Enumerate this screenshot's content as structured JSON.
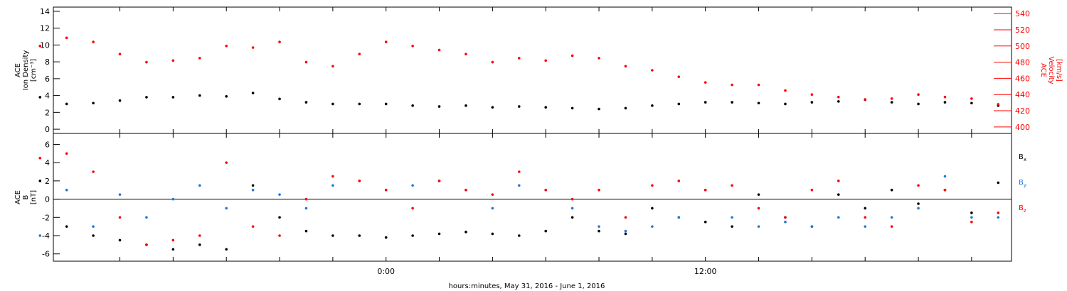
{
  "chart_data": [
    {
      "type": "scatter",
      "panel": "top",
      "left_axis": {
        "label_lines": [
          "ACE",
          "Ion Density",
          "[cm⁻³]"
        ],
        "ylim": [
          -0.5,
          14.5
        ],
        "ticks": [
          "0",
          "2",
          "4",
          "6",
          "8",
          "10",
          "12",
          "14"
        ],
        "color": "#000000"
      },
      "right_axis": {
        "label_lines": [
          "ACE",
          "Velocity",
          "[km/s]"
        ],
        "ylim": [
          392,
          548
        ],
        "ticks": [
          "400",
          "420",
          "440",
          "460",
          "480",
          "500",
          "520",
          "540"
        ],
        "color": "#ff0000"
      },
      "series": [
        {
          "role": "ion_density",
          "axis": "left",
          "color": "#000000",
          "x": [
            -13,
            -12,
            -11,
            -10,
            -9,
            -8,
            -7,
            -6,
            -5,
            -4,
            -3,
            -2,
            -1,
            0,
            1,
            2,
            3,
            4,
            5,
            6,
            7,
            8,
            9,
            10,
            11,
            12,
            13,
            14,
            15,
            16,
            17,
            18,
            19,
            20,
            21,
            22,
            23
          ],
          "y": [
            3.8,
            3.0,
            3.1,
            3.4,
            3.8,
            3.8,
            4.0,
            3.9,
            4.3,
            3.6,
            3.2,
            3.0,
            3.0,
            3.0,
            2.8,
            2.7,
            2.8,
            2.6,
            2.7,
            2.6,
            2.5,
            2.4,
            2.5,
            2.8,
            3.0,
            3.2,
            3.2,
            3.1,
            3.0,
            3.2,
            3.3,
            3.5,
            3.2,
            3.0,
            3.2,
            3.1,
            2.8
          ]
        },
        {
          "role": "velocity",
          "axis": "right",
          "color": "#ff0000",
          "x": [
            -13,
            -12,
            -11,
            -10,
            -9,
            -8,
            -7,
            -6,
            -5,
            -4,
            -3,
            -2,
            -1,
            0,
            1,
            2,
            3,
            4,
            5,
            6,
            7,
            8,
            9,
            10,
            11,
            12,
            13,
            14,
            15,
            16,
            17,
            18,
            19,
            20,
            21,
            22,
            23
          ],
          "y": [
            500,
            510,
            505,
            490,
            480,
            482,
            485,
            500,
            498,
            505,
            480,
            475,
            490,
            505,
            500,
            495,
            490,
            480,
            485,
            482,
            488,
            485,
            475,
            470,
            462,
            455,
            452,
            452,
            445,
            440,
            437,
            434,
            435,
            440,
            437,
            435,
            428
          ]
        }
      ]
    },
    {
      "type": "scatter",
      "panel": "bottom",
      "left_axis": {
        "label_lines": [
          "ACE",
          "B",
          "[nT]"
        ],
        "ylim": [
          -6.8,
          7.2
        ],
        "ticks": [
          "-6",
          "-4",
          "-2",
          "0",
          "2",
          "4",
          "6"
        ],
        "color": "#000000"
      },
      "zero_line": true,
      "legend": {
        "placement": "right"
      },
      "series": [
        {
          "name": "B",
          "subscript": "x",
          "color": "#000000",
          "x": [
            -13,
            -12,
            -11,
            -10,
            -9,
            -8,
            -7,
            -6,
            -5,
            -4,
            -3,
            -2,
            -1,
            0,
            1,
            2,
            3,
            4,
            5,
            6,
            7,
            8,
            9,
            10,
            11,
            12,
            13,
            14,
            15,
            16,
            17,
            18,
            19,
            20,
            21,
            22,
            23
          ],
          "y": [
            2.0,
            -3.0,
            -4.0,
            -4.5,
            -5.0,
            -5.5,
            -5.0,
            -5.5,
            1.5,
            -2.0,
            -3.5,
            -4.0,
            -4.0,
            -4.2,
            -4.0,
            -3.8,
            -3.6,
            -3.8,
            -4.0,
            -3.5,
            -2.0,
            -3.5,
            -3.8,
            -1.0,
            -2.0,
            -2.5,
            -3.0,
            0.5,
            -2.0,
            -3.0,
            0.5,
            -1.0,
            1.0,
            -0.5,
            1.0,
            -1.5,
            1.8
          ]
        },
        {
          "name": "B",
          "subscript": "y",
          "color": "#1f77d4",
          "x": [
            -13,
            -12,
            -11,
            -10,
            -9,
            -8,
            -7,
            -6,
            -5,
            -4,
            -3,
            -2,
            -1,
            0,
            1,
            2,
            3,
            4,
            5,
            6,
            7,
            8,
            9,
            10,
            11,
            12,
            13,
            14,
            15,
            16,
            17,
            18,
            19,
            20,
            21,
            22,
            23
          ],
          "y": [
            -4.0,
            1.0,
            -3.0,
            0.5,
            -2.0,
            0.0,
            1.5,
            -1.0,
            1.0,
            0.5,
            -1.0,
            1.5,
            2.0,
            1.0,
            1.5,
            2.0,
            1.0,
            -1.0,
            1.5,
            1.0,
            -1.0,
            -3.0,
            -3.5,
            -3.0,
            -2.0,
            1.0,
            -2.0,
            -3.0,
            -2.5,
            -3.0,
            -2.0,
            -3.0,
            -2.0,
            -1.0,
            2.5,
            -2.0,
            -2.0
          ]
        },
        {
          "name": "B",
          "subscript": "z",
          "color": "#ff0000",
          "x": [
            -13,
            -12,
            -11,
            -10,
            -9,
            -8,
            -7,
            -6,
            -5,
            -4,
            -3,
            -2,
            -1,
            0,
            1,
            2,
            3,
            4,
            5,
            6,
            7,
            8,
            9,
            10,
            11,
            12,
            13,
            14,
            15,
            16,
            17,
            18,
            19,
            20,
            21,
            22,
            23
          ],
          "y": [
            4.5,
            5.0,
            3.0,
            -2.0,
            -5.0,
            -4.5,
            -4.0,
            4.0,
            -3.0,
            -4.0,
            0.0,
            2.5,
            2.0,
            1.0,
            -1.0,
            2.0,
            1.0,
            0.5,
            3.0,
            1.0,
            0.0,
            1.0,
            -2.0,
            1.5,
            2.0,
            1.0,
            1.5,
            -1.0,
            -2.0,
            1.0,
            2.0,
            -2.0,
            -3.0,
            1.5,
            1.0,
            -2.5,
            -1.5
          ]
        }
      ]
    }
  ],
  "x_axis": {
    "title": "hours:minutes, May 31, 2016 - June  1, 2016",
    "range_hours": [
      -12.5,
      23.5
    ],
    "labels": [
      {
        "hours": 0,
        "text": "0:00"
      },
      {
        "hours": 12,
        "text": "12:00"
      }
    ],
    "minor_tick_hours": [
      -10,
      -8,
      -6,
      -4,
      -2,
      0,
      2,
      4,
      6,
      8,
      10,
      12,
      14,
      16,
      18,
      20,
      22
    ]
  }
}
